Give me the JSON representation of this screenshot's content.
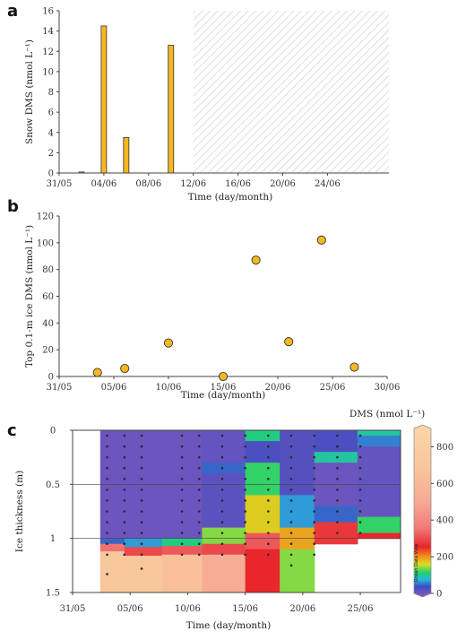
{
  "figure": {
    "panels": [
      "a",
      "b",
      "c"
    ]
  },
  "chart_data": [
    {
      "panel": "a",
      "type": "bar",
      "x_unit": "day",
      "x_ticks": [
        "31/05",
        "04/06",
        "08/06",
        "12/06",
        "16/06",
        "20/06",
        "24/06"
      ],
      "x_tick_days": [
        0,
        4,
        8,
        12,
        16,
        20,
        24
      ],
      "xlim": [
        0,
        29.5
      ],
      "x": [
        2,
        4,
        6,
        10
      ],
      "values": [
        0.1,
        14.5,
        3.5,
        12.6
      ],
      "bar_color": "#f5b820",
      "ylim": [
        0,
        16
      ],
      "y_ticks": [
        0,
        2,
        4,
        6,
        8,
        10,
        12,
        14,
        16
      ],
      "ylabel": "Snow DMS (nmol L⁻¹)",
      "xlabel": "Time (day/month)",
      "hatched_region": [
        12,
        29.5
      ],
      "grid": false
    },
    {
      "panel": "b",
      "type": "scatter",
      "x_unit": "day",
      "x_ticks": [
        "31/05",
        "05/06",
        "10/06",
        "15/06",
        "20/06",
        "25/06",
        "30/06"
      ],
      "x_tick_days": [
        0,
        5,
        10,
        15,
        20,
        25,
        30
      ],
      "xlim": [
        0,
        30
      ],
      "x": [
        3.5,
        6,
        10,
        15,
        18,
        21,
        24,
        27
      ],
      "y": [
        3,
        6,
        25,
        0,
        87,
        26,
        102,
        7
      ],
      "marker_color": "#f5b820",
      "ylim": [
        0,
        120
      ],
      "y_ticks": [
        0,
        20,
        40,
        60,
        80,
        100,
        120
      ],
      "y_tick_labels": [
        "0",
        "20",
        "40",
        "60",
        "80",
        "100",
        "120"
      ],
      "ylabel": "Top 0.1-m ice DMS (nmol L⁻¹)",
      "xlabel": "Time (day/month)",
      "grid": false
    },
    {
      "panel": "c",
      "type": "heatmap",
      "x_unit": "day",
      "x_ticks": [
        "31/05",
        "05/06",
        "10/06",
        "15/06",
        "20/06",
        "25/06"
      ],
      "x_tick_days": [
        0,
        5,
        10,
        15,
        20,
        25
      ],
      "xlim": [
        0,
        28.5
      ],
      "ylim": [
        1.5,
        0
      ],
      "y_ticks": [
        0,
        0.5,
        1,
        1.5
      ],
      "y_tick_labels": [
        "0",
        "0.5",
        "1",
        "1.5"
      ],
      "ylabel": "Ice thickness (m)",
      "xlabel": "Time (day/month)",
      "colorbar_title": "DMS (nmol L⁻¹)",
      "colorbar_ticks": [
        0,
        200,
        400,
        600,
        800
      ],
      "colorbar_max": 900,
      "colorbar_watermark": "Ocean Data View",
      "sampling_days": [
        3,
        4.5,
        6,
        9.5,
        11,
        13,
        15,
        17,
        19,
        21,
        23,
        25
      ],
      "sampling_depths": [
        0.05,
        0.15,
        0.25,
        0.35,
        0.45,
        0.55,
        0.65,
        0.75,
        0.85,
        0.95,
        1.05,
        1.15
      ],
      "extra_bottom_samples": [
        [
          3,
          1.33
        ],
        [
          6,
          1.28
        ],
        [
          19,
          1.25
        ]
      ],
      "hlines_m": [
        0.5,
        1.0
      ],
      "concentration_field": [
        {
          "day": 3,
          "bands": [
            [
              0,
              1.0,
              20
            ],
            [
              1.0,
              1.05,
              60
            ],
            [
              1.05,
              1.12,
              350
            ],
            [
              1.12,
              1.5,
              700
            ]
          ]
        },
        {
          "day": 6,
          "bands": [
            [
              0,
              1.0,
              20
            ],
            [
              1.0,
              1.08,
              80
            ],
            [
              1.08,
              1.16,
              300
            ],
            [
              1.16,
              1.5,
              700
            ]
          ]
        },
        {
          "day": 9.5,
          "bands": [
            [
              0,
              1.0,
              20
            ],
            [
              1.0,
              1.07,
              120
            ],
            [
              1.07,
              1.15,
              320
            ],
            [
              1.15,
              1.5,
              650
            ]
          ]
        },
        {
          "day": 13,
          "bands": [
            [
              0,
              0.3,
              25
            ],
            [
              0.3,
              0.4,
              60
            ],
            [
              0.4,
              0.9,
              30
            ],
            [
              0.9,
              1.05,
              150
            ],
            [
              1.05,
              1.15,
              300
            ],
            [
              1.15,
              1.5,
              520
            ]
          ]
        },
        {
          "day": 17,
          "bands": [
            [
              0,
              0.1,
              120
            ],
            [
              0.1,
              0.3,
              40
            ],
            [
              0.3,
              0.6,
              130
            ],
            [
              0.6,
              0.95,
              180
            ],
            [
              0.95,
              1.1,
              320
            ],
            [
              1.1,
              1.5,
              260
            ]
          ]
        },
        {
          "day": 19,
          "bands": [
            [
              0,
              0.6,
              35
            ],
            [
              0.6,
              0.9,
              80
            ],
            [
              0.9,
              1.1,
              200
            ],
            [
              1.1,
              1.5,
              150
            ]
          ]
        },
        {
          "day": 23,
          "bands": [
            [
              0,
              0.2,
              40
            ],
            [
              0.2,
              0.3,
              110
            ],
            [
              0.3,
              0.7,
              20
            ],
            [
              0.7,
              0.85,
              60
            ],
            [
              0.85,
              1.05,
              280
            ]
          ]
        },
        {
          "day": 26.5,
          "bands": [
            [
              0,
              0.05,
              110
            ],
            [
              0.05,
              0.15,
              70
            ],
            [
              0.15,
              0.8,
              25
            ],
            [
              0.8,
              0.95,
              130
            ],
            [
              0.95,
              1.0,
              260
            ]
          ]
        }
      ]
    }
  ]
}
